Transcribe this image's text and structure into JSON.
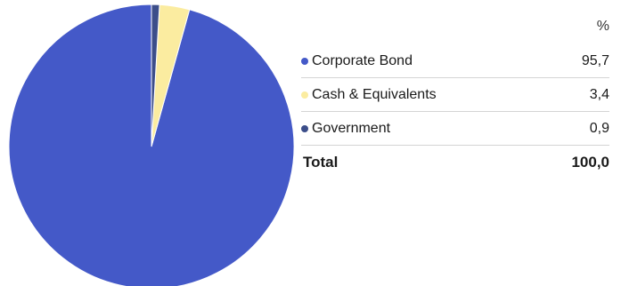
{
  "chart_data": {
    "type": "pie",
    "unit_header": "%",
    "slices": [
      {
        "label": "Corporate Bond",
        "value": 95.7,
        "display": "95,7",
        "color": "#4459c8"
      },
      {
        "label": "Cash & Equivalents",
        "value": 3.4,
        "display": "3,4",
        "color": "#fbeca0"
      },
      {
        "label": "Government",
        "value": 0.9,
        "display": "0,9",
        "color": "#3c4e8a"
      }
    ],
    "total": {
      "label": "Total",
      "display": "100,0"
    }
  }
}
